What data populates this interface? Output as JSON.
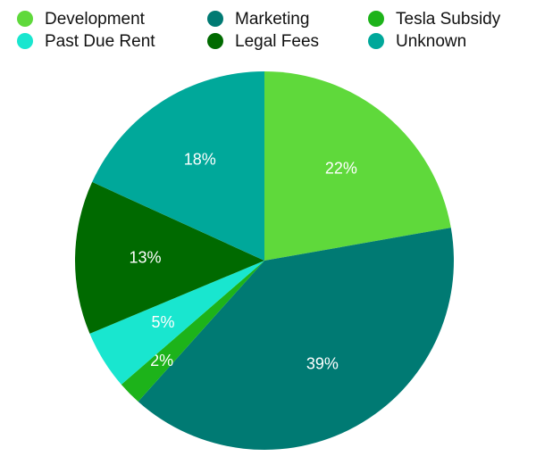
{
  "chart_data": {
    "type": "pie",
    "categories": [
      "Development",
      "Marketing",
      "Tesla Subsidy",
      "Past Due Rent",
      "Legal Fees",
      "Unknown"
    ],
    "values": [
      22,
      39,
      2,
      5,
      13,
      18
    ],
    "value_labels": [
      "22%",
      "39%",
      "2%",
      "5%",
      "13%",
      "18%"
    ],
    "colors": [
      "#5fd93b",
      "#007a73",
      "#1db31a",
      "#19e6cf",
      "#006a00",
      "#00a89a"
    ]
  }
}
